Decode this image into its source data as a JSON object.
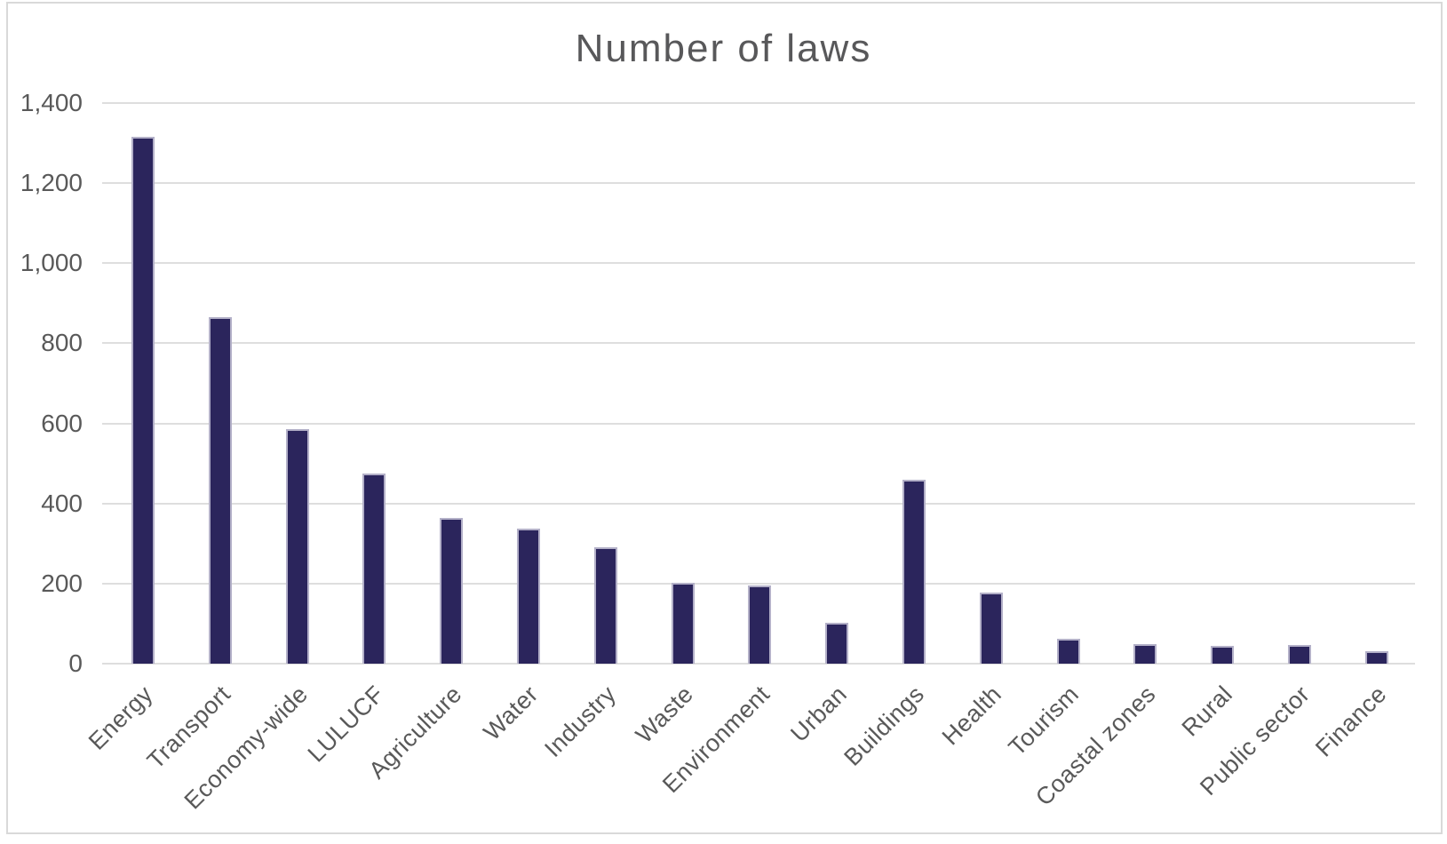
{
  "chart_data": {
    "type": "bar",
    "title": "Number of laws",
    "categories": [
      "Energy",
      "Transport",
      "Economy-wide",
      "LULUCF",
      "Agriculture",
      "Water",
      "Industry",
      "Waste",
      "Environment",
      "Urban",
      "Buildings",
      "Health",
      "Tourism",
      "Coastal zones",
      "Rural",
      "Public sector",
      "Finance"
    ],
    "values": [
      1315,
      865,
      586,
      475,
      364,
      337,
      290,
      202,
      195,
      101,
      460,
      177,
      63,
      49,
      45,
      46,
      32
    ],
    "xlabel": "",
    "ylabel": "",
    "ylim": [
      0,
      1400
    ],
    "ytick_step": 200,
    "ytick_labels": [
      "0",
      "200",
      "400",
      "600",
      "800",
      "1,000",
      "1,200",
      "1,400"
    ],
    "grid": "horizontal-only",
    "legend_position": "none",
    "x_label_rotation_deg": -45,
    "bar_color": "#2b255c",
    "bar_border_color": "#b3b0c8",
    "gridline_color": "#dedede",
    "text_color": "#595959",
    "frame_border_color": "#d9d9d9",
    "background_color": "#ffffff"
  }
}
